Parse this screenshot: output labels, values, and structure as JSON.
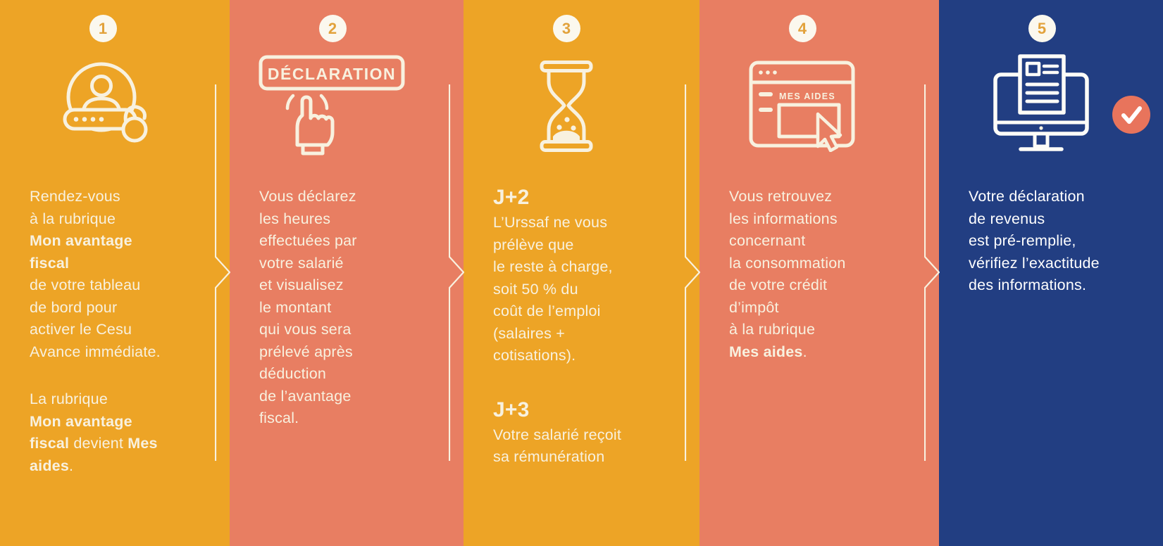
{
  "palette": {
    "orange": "#EDA426",
    "coral": "#E87E62",
    "blue": "#223E82",
    "cream": "#F8F1DF",
    "badge_bg": "#FBF8EE",
    "badge_number": "#E2A23B",
    "check_badge": "#E8745C"
  },
  "icons": {
    "declaration_label": "DÉCLARATION",
    "mes_aides_label": "MES AIDES"
  },
  "steps": [
    {
      "number": "1",
      "icon": "account-login-icon",
      "blocks": [
        {
          "type": "p",
          "segments": [
            {
              "t": "Rendez-vous\nà la rubrique\n"
            },
            {
              "t": "Mon avantage\nfiscal",
              "b": true
            },
            {
              "t": "\nde votre tableau\nde bord pour\nactiver le Cesu\nAvance immédiate."
            }
          ]
        },
        {
          "type": "p",
          "segments": [
            {
              "t": "La rubrique\n"
            },
            {
              "t": "Mon avantage\nfiscal",
              "b": true
            },
            {
              "t": " devient "
            },
            {
              "t": "Mes\naides",
              "b": true
            },
            {
              "t": "."
            }
          ]
        }
      ]
    },
    {
      "number": "2",
      "icon": "declaration-click-icon",
      "blocks": [
        {
          "type": "p",
          "segments": [
            {
              "t": "Vous déclarez\nles heures\neffectuées par\nvotre salarié\net visualisez\nle montant\nqui vous sera\nprélevé après\ndéduction\nde l’avantage\nfiscal."
            }
          ]
        }
      ]
    },
    {
      "number": "3",
      "icon": "hourglass-icon",
      "blocks": [
        {
          "type": "h",
          "segments": [
            {
              "t": "J+2"
            }
          ]
        },
        {
          "type": "p",
          "segments": [
            {
              "t": "L’Urssaf ne vous\nprélève que\nle reste à charge,\nsoit 50 % du\ncoût de l’emploi\n(salaires +\ncotisations)."
            }
          ]
        },
        {
          "type": "h",
          "segments": [
            {
              "t": "J+3"
            }
          ]
        },
        {
          "type": "p",
          "segments": [
            {
              "t": "Votre salarié reçoit\nsa rémunération"
            }
          ]
        }
      ]
    },
    {
      "number": "4",
      "icon": "mes-aides-window-icon",
      "blocks": [
        {
          "type": "p",
          "segments": [
            {
              "t": "Vous retrouvez\nles informations\nconcernant\nla consommation\nde votre crédit\nd’impôt\nà la rubrique\n"
            },
            {
              "t": "Mes aides",
              "b": true
            },
            {
              "t": "."
            }
          ]
        }
      ]
    },
    {
      "number": "5",
      "icon": "monitor-declaration-icon",
      "blocks": [
        {
          "type": "p",
          "segments": [
            {
              "t": "Votre déclaration\nde revenus\nest pré-remplie,\nvérifiez l’exactitude\ndes informations."
            }
          ]
        }
      ]
    }
  ]
}
